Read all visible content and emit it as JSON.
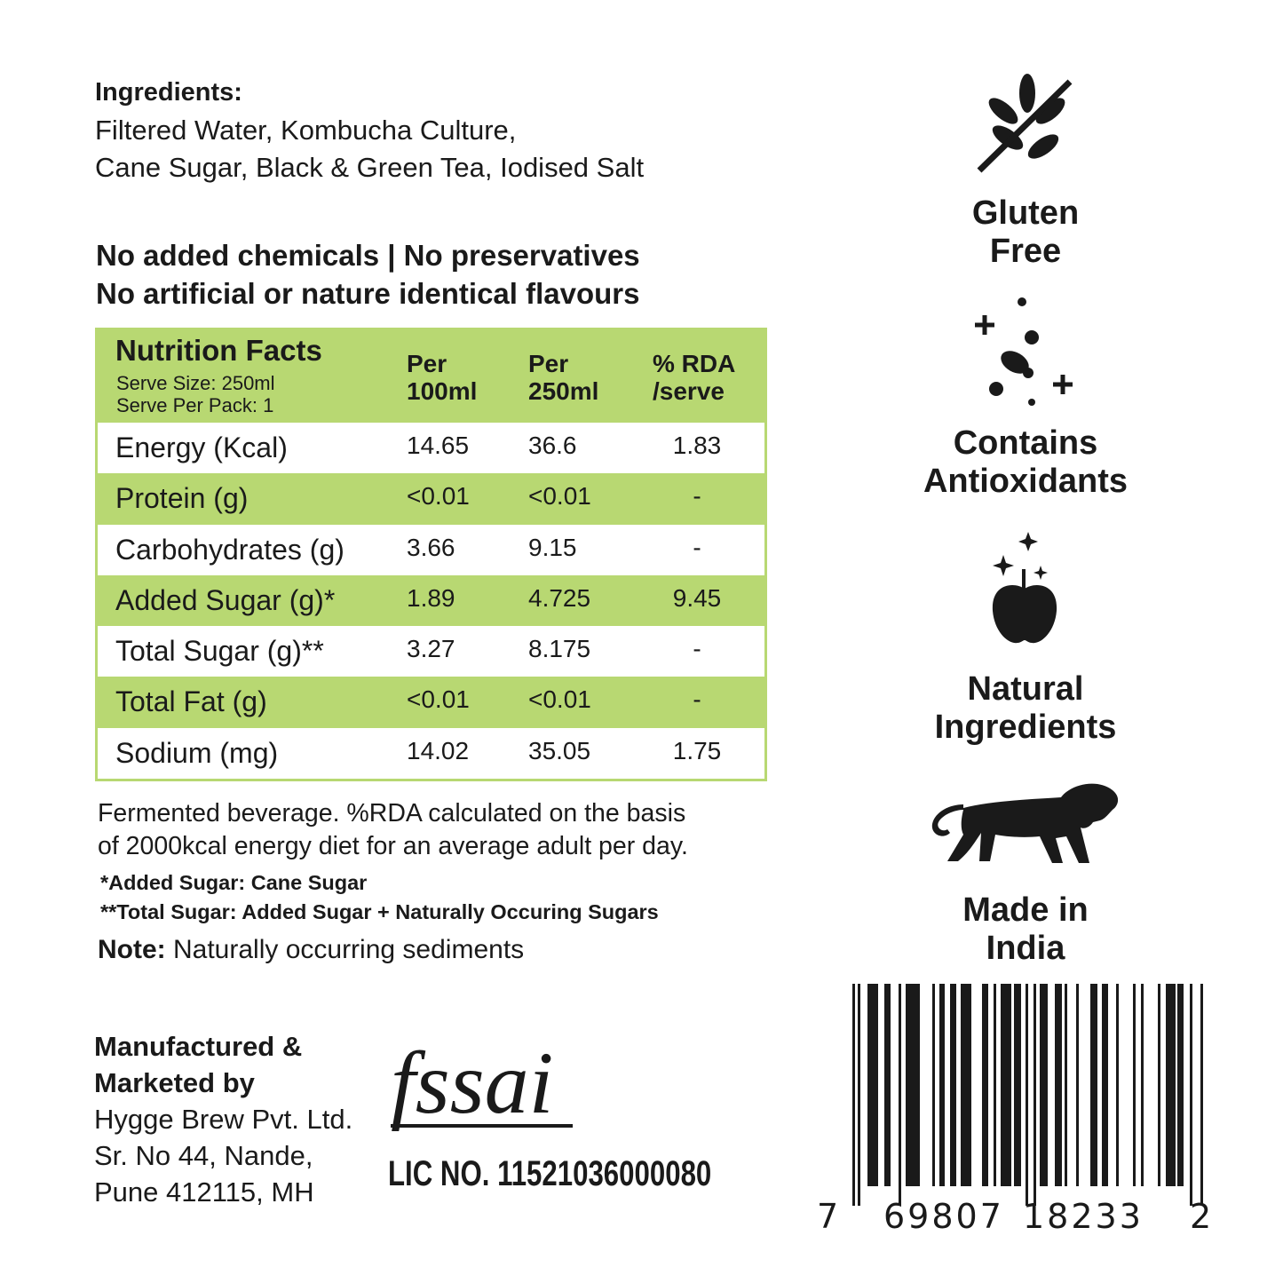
{
  "ingredients": {
    "heading": "Ingredients:",
    "line1": "Filtered Water, Kombucha Culture,",
    "line2": "Cane Sugar, Black & Green Tea, Iodised Salt"
  },
  "claims": {
    "line1": "No added chemicals | No preservatives",
    "line2": "No artificial or nature identical flavours"
  },
  "nutrition": {
    "title": "Nutrition Facts",
    "serve_size": "Serve Size: 250ml",
    "serve_per_pack": "Serve Per Pack: 1",
    "columns": [
      {
        "l1": "Per",
        "l2": "100ml"
      },
      {
        "l1": "Per",
        "l2": "250ml"
      },
      {
        "l1": "% RDA",
        "l2": "/serve"
      }
    ],
    "rows": [
      {
        "name": "Energy (Kcal)",
        "per100": "14.65",
        "per250": "36.6",
        "rda": "1.83"
      },
      {
        "name": "Protein (g)",
        "per100": "<0.01",
        "per250": "<0.01",
        "rda": "-"
      },
      {
        "name": "Carbohydrates (g)",
        "per100": "3.66",
        "per250": "9.15",
        "rda": "-"
      },
      {
        "name": "Added Sugar (g)*",
        "per100": "1.89",
        "per250": "4.725",
        "rda": "9.45"
      },
      {
        "name": "Total Sugar (g)**",
        "per100": "3.27",
        "per250": "8.175",
        "rda": "-"
      },
      {
        "name": "Total Fat (g)",
        "per100": "<0.01",
        "per250": "<0.01",
        "rda": "-"
      },
      {
        "name": "Sodium (mg)",
        "per100": "14.02",
        "per250": "35.05",
        "rda": "1.75"
      }
    ],
    "accent_color": "#b8d872"
  },
  "footnotes": {
    "line1": "Fermented beverage. %RDA calculated on the basis",
    "line2": "of 2000kcal energy diet for an average adult per day.",
    "added": "*Added Sugar: Cane Sugar",
    "total": "**Total Sugar: Added Sugar + Naturally Occuring Sugars",
    "note_label": "Note:",
    "note_text": " Naturally occurring sediments"
  },
  "manufacturer": {
    "l1": "Manufactured &",
    "l2": "Marketed by",
    "l3": "Hygge Brew Pvt. Ltd.",
    "l4": "Sr. No 44, Nande,",
    "l5": "Pune 412115, MH"
  },
  "fssai": {
    "logo": "fssai",
    "license": "LIC NO. 11521036000080"
  },
  "badges": [
    {
      "icon": "wheat-crossed-icon",
      "l1": "Gluten",
      "l2": "Free"
    },
    {
      "icon": "antioxidant-icon",
      "l1": "Contains",
      "l2": "Antioxidants"
    },
    {
      "icon": "apple-sparkle-icon",
      "l1": "Natural",
      "l2": "Ingredients"
    },
    {
      "icon": "lion-icon",
      "l1": "Made in",
      "l2": "India"
    }
  ],
  "barcode": {
    "first": "7",
    "left": "69807",
    "right": "18233",
    "check": "2"
  }
}
